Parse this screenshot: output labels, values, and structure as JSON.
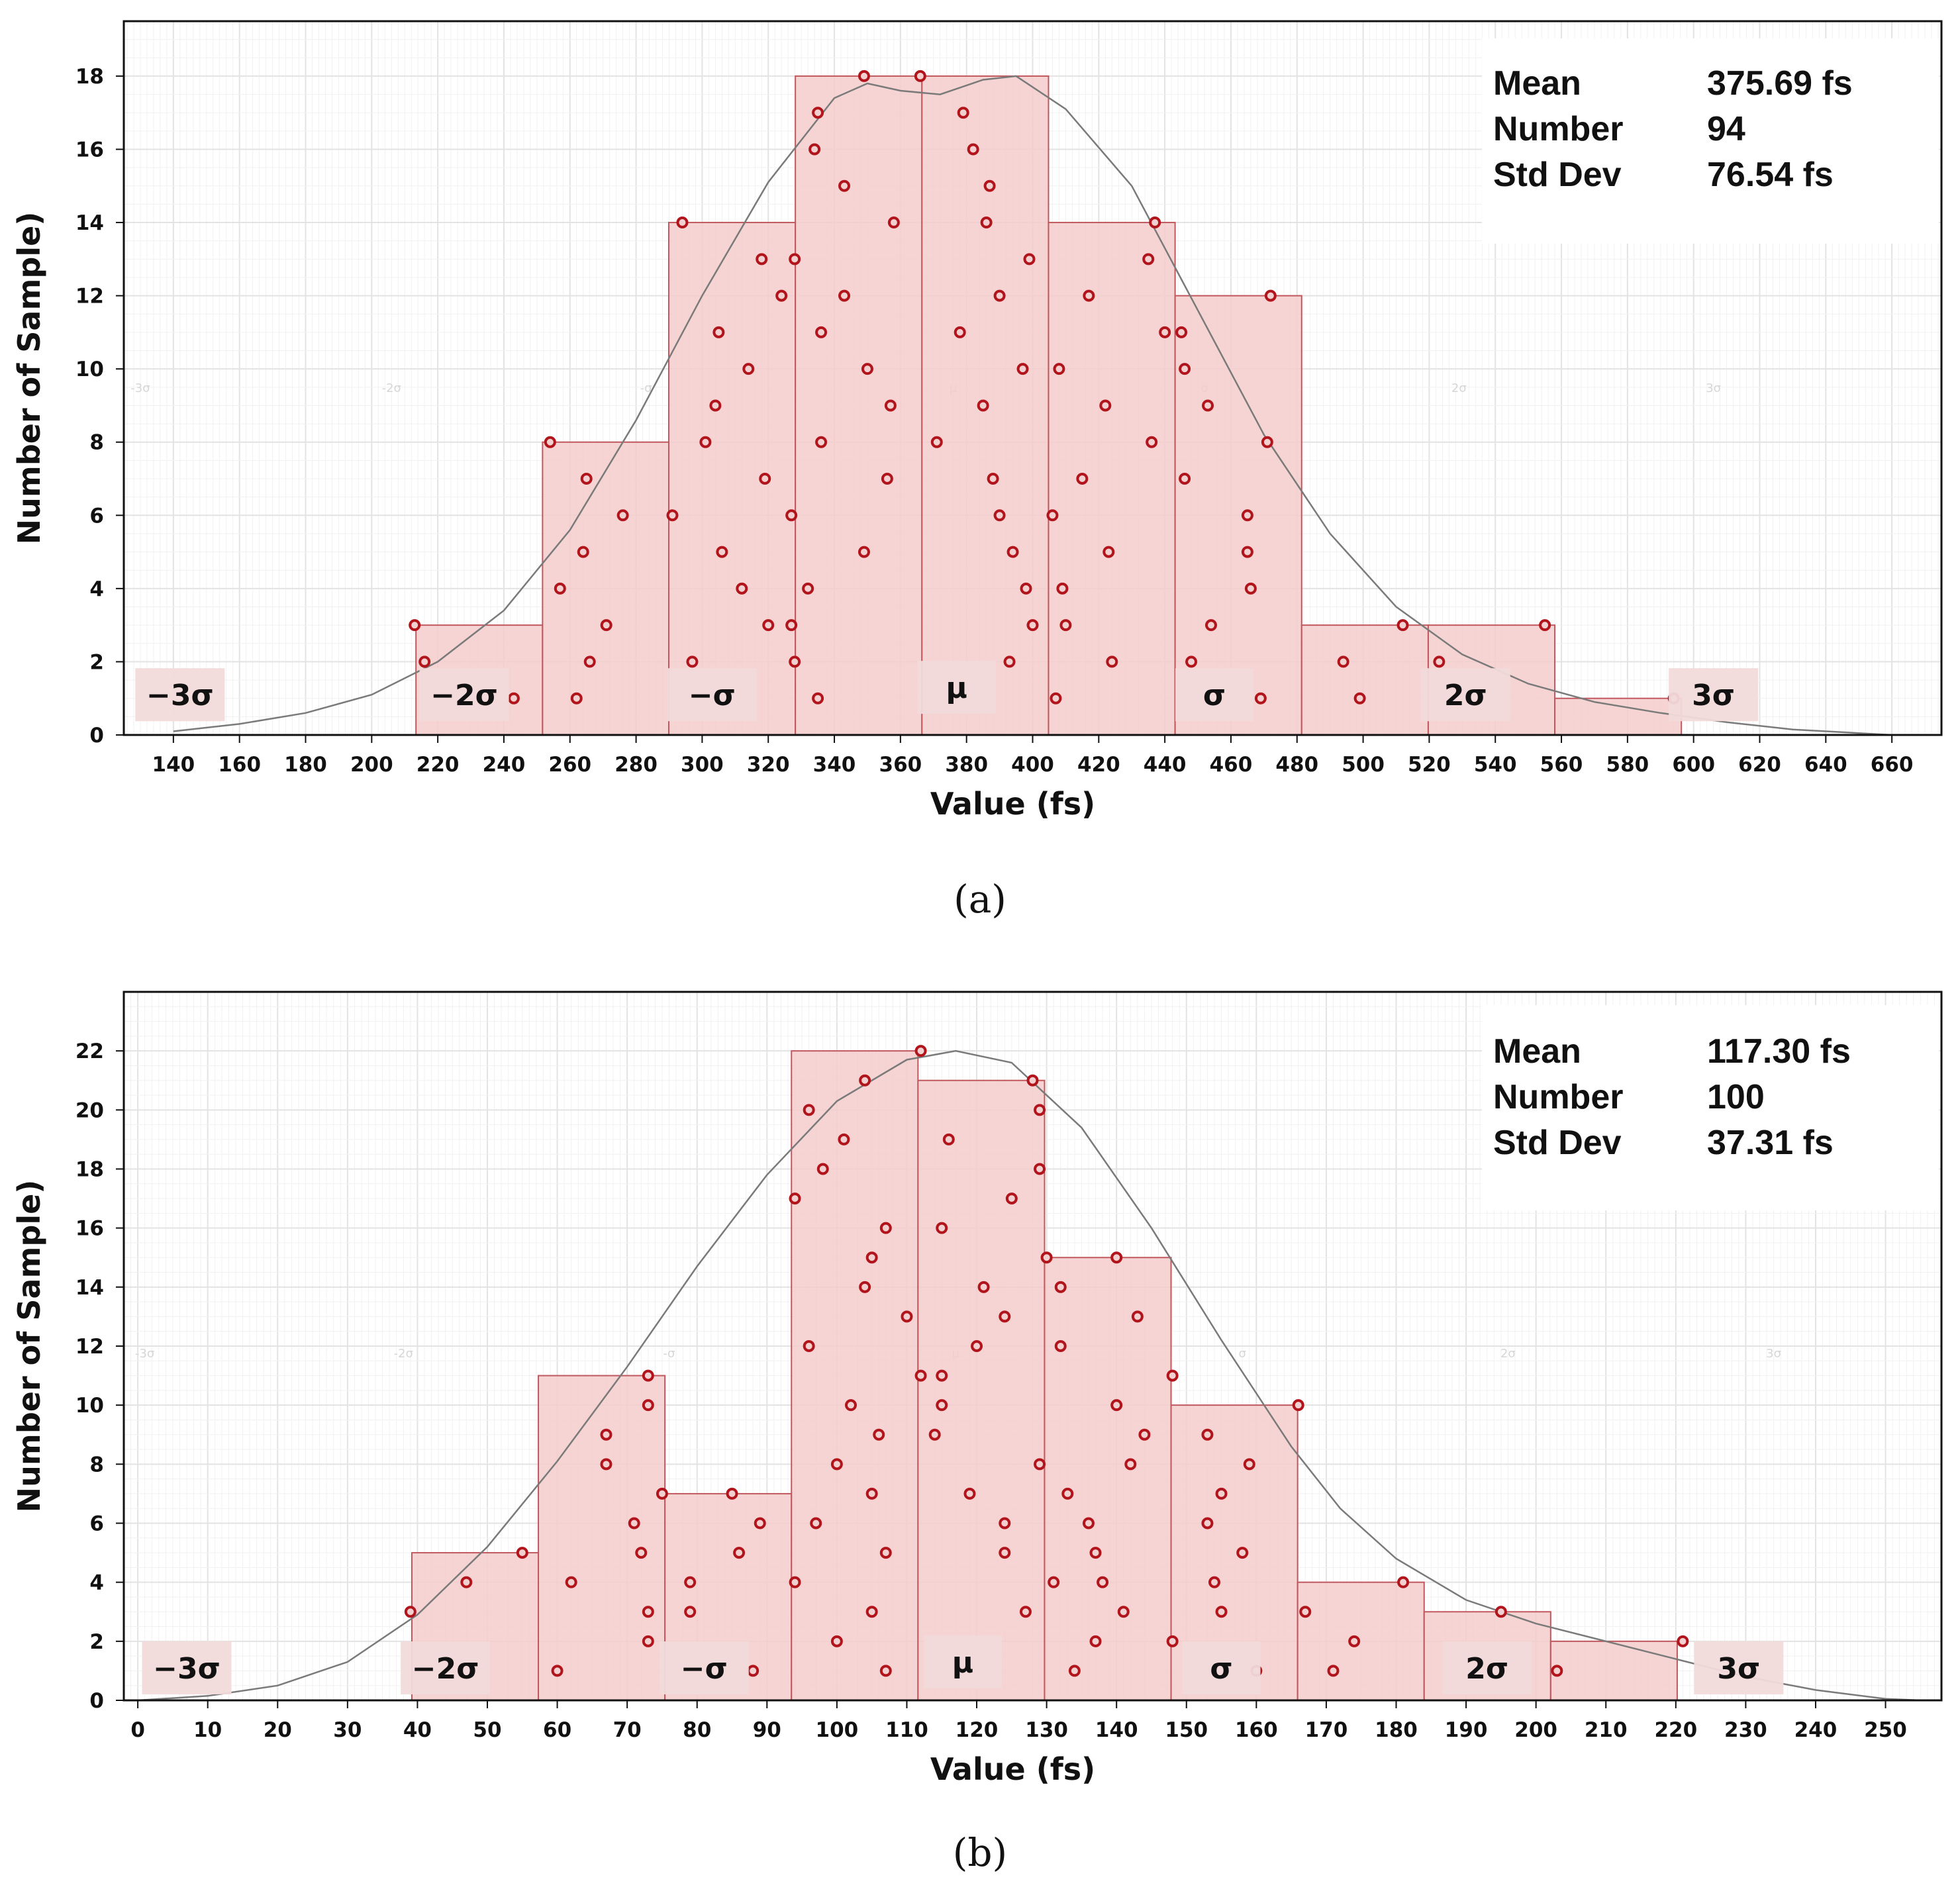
{
  "chart_data": [
    {
      "type": "histogram",
      "panel": "a",
      "caption": "(a)",
      "xlabel": "Value  (fs)",
      "ylabel": "Number of Sample)",
      "xlim": [
        125,
        675
      ],
      "ylim": [
        0,
        19.5
      ],
      "xticks": [
        140,
        160,
        180,
        200,
        220,
        240,
        260,
        280,
        300,
        320,
        340,
        360,
        380,
        400,
        420,
        440,
        460,
        480,
        500,
        520,
        540,
        560,
        580,
        600,
        620,
        640,
        660
      ],
      "yticks": [
        0,
        2,
        4,
        6,
        8,
        10,
        12,
        14,
        16,
        18
      ],
      "bins": [
        {
          "x0": 213.4,
          "x1": 251.7,
          "count": 3
        },
        {
          "x0": 251.7,
          "x1": 289.9,
          "count": 8
        },
        {
          "x0": 289.9,
          "x1": 328.2,
          "count": 14
        },
        {
          "x0": 328.2,
          "x1": 366.5,
          "count": 18
        },
        {
          "x0": 366.5,
          "x1": 404.8,
          "count": 18
        },
        {
          "x0": 404.8,
          "x1": 443.1,
          "count": 14
        },
        {
          "x0": 443.1,
          "x1": 481.4,
          "count": 12
        },
        {
          "x0": 481.4,
          "x1": 519.7,
          "count": 3
        },
        {
          "x0": 519.7,
          "x1": 558.0,
          "count": 3
        },
        {
          "x0": 558.0,
          "x1": 596.3,
          "count": 1
        }
      ],
      "curve": [
        [
          140,
          0.1
        ],
        [
          160,
          0.3
        ],
        [
          180,
          0.6
        ],
        [
          200,
          1.1
        ],
        [
          220,
          2.0
        ],
        [
          240,
          3.4
        ],
        [
          260,
          5.6
        ],
        [
          280,
          8.6
        ],
        [
          300,
          12.0
        ],
        [
          320,
          15.1
        ],
        [
          340,
          17.4
        ],
        [
          350,
          17.8
        ],
        [
          360,
          17.6
        ],
        [
          372,
          17.5
        ],
        [
          385,
          17.9
        ],
        [
          395,
          18.0
        ],
        [
          410,
          17.1
        ],
        [
          430,
          15.0
        ],
        [
          450,
          11.6
        ],
        [
          470,
          8.2
        ],
        [
          490,
          5.5
        ],
        [
          510,
          3.5
        ],
        [
          530,
          2.2
        ],
        [
          550,
          1.4
        ],
        [
          570,
          0.9
        ],
        [
          590,
          0.6
        ],
        [
          610,
          0.35
        ],
        [
          630,
          0.15
        ],
        [
          650,
          0.05
        ],
        [
          660,
          0.0
        ]
      ],
      "sigma_labels": [
        {
          "text": "−3σ",
          "x": 142,
          "y": 1.1
        },
        {
          "text": "−2σ",
          "x": 228,
          "y": 1.1
        },
        {
          "text": "−σ",
          "x": 303,
          "y": 1.1
        },
        {
          "text": "μ",
          "x": 377,
          "y": 1.3
        },
        {
          "text": "σ",
          "x": 455,
          "y": 1.1
        },
        {
          "text": "2σ",
          "x": 531,
          "y": 1.1
        },
        {
          "text": "3σ",
          "x": 606,
          "y": 1.1
        }
      ],
      "faint_labels": [
        {
          "text": "-3σ",
          "x": 130
        },
        {
          "text": "-2σ",
          "x": 206
        },
        {
          "text": "-σ",
          "x": 283
        },
        {
          "text": "μ",
          "x": 376
        },
        {
          "text": "σ",
          "x": 452
        },
        {
          "text": "2σ",
          "x": 529
        },
        {
          "text": "3σ",
          "x": 606
        }
      ],
      "stats": [
        {
          "label": "Mean",
          "value": "375.69 fs"
        },
        {
          "label": "Number",
          "value": "94"
        },
        {
          "label": "Std Dev",
          "value": "76.54   fs"
        }
      ],
      "points": [
        [
          213,
          3
        ],
        [
          216,
          2
        ],
        [
          243,
          1
        ],
        [
          254,
          8
        ],
        [
          257,
          4
        ],
        [
          262,
          1
        ],
        [
          264,
          5
        ],
        [
          265,
          7
        ],
        [
          266,
          2
        ],
        [
          271,
          3
        ],
        [
          276,
          6
        ],
        [
          291,
          6
        ],
        [
          294,
          14
        ],
        [
          297,
          2
        ],
        [
          301,
          8
        ],
        [
          304,
          9
        ],
        [
          305,
          11
        ],
        [
          306,
          5
        ],
        [
          312,
          4
        ],
        [
          314,
          10
        ],
        [
          318,
          13
        ],
        [
          319,
          7
        ],
        [
          320,
          3
        ],
        [
          324,
          12
        ],
        [
          327,
          6
        ],
        [
          327,
          3
        ],
        [
          328,
          13
        ],
        [
          328,
          2
        ],
        [
          332,
          4
        ],
        [
          334,
          16
        ],
        [
          335,
          17
        ],
        [
          335,
          1
        ],
        [
          336,
          8
        ],
        [
          336,
          11
        ],
        [
          343,
          15
        ],
        [
          343,
          12
        ],
        [
          349,
          18
        ],
        [
          349,
          5
        ],
        [
          350,
          10
        ],
        [
          356,
          7
        ],
        [
          357,
          9
        ],
        [
          358,
          14
        ],
        [
          366,
          18
        ],
        [
          371,
          8
        ],
        [
          378,
          11
        ],
        [
          379,
          17
        ],
        [
          382,
          16
        ],
        [
          385,
          9
        ],
        [
          386,
          14
        ],
        [
          387,
          15
        ],
        [
          388,
          7
        ],
        [
          390,
          6
        ],
        [
          390,
          12
        ],
        [
          393,
          2
        ],
        [
          394,
          5
        ],
        [
          397,
          10
        ],
        [
          398,
          4
        ],
        [
          399,
          13
        ],
        [
          400,
          3
        ],
        [
          406,
          6
        ],
        [
          407,
          1
        ],
        [
          408,
          10
        ],
        [
          409,
          4
        ],
        [
          410,
          3
        ],
        [
          415,
          7
        ],
        [
          417,
          12
        ],
        [
          422,
          9
        ],
        [
          423,
          5
        ],
        [
          424,
          2
        ],
        [
          435,
          13
        ],
        [
          436,
          8
        ],
        [
          437,
          14
        ],
        [
          440,
          11
        ],
        [
          445,
          11
        ],
        [
          446,
          7
        ],
        [
          446,
          10
        ],
        [
          448,
          2
        ],
        [
          453,
          9
        ],
        [
          454,
          3
        ],
        [
          465,
          6
        ],
        [
          465,
          5
        ],
        [
          466,
          4
        ],
        [
          469,
          1
        ],
        [
          471,
          8
        ],
        [
          472,
          12
        ],
        [
          494,
          2
        ],
        [
          499,
          1
        ],
        [
          512,
          3
        ],
        [
          523,
          2
        ],
        [
          555,
          3
        ],
        [
          594,
          1
        ]
      ]
    },
    {
      "type": "histogram",
      "panel": "b",
      "caption": "(b)",
      "xlabel": "Value  (fs)",
      "ylabel": "Number of Sample)",
      "xlim": [
        -2,
        258
      ],
      "ylim": [
        0,
        24
      ],
      "xticks": [
        0,
        10,
        20,
        30,
        40,
        50,
        60,
        70,
        80,
        90,
        100,
        110,
        120,
        130,
        140,
        150,
        160,
        170,
        180,
        190,
        200,
        210,
        220,
        230,
        240,
        250
      ],
      "yticks": [
        0,
        2,
        4,
        6,
        8,
        10,
        12,
        14,
        16,
        18,
        20,
        22
      ],
      "bins": [
        {
          "x0": 39.2,
          "x1": 57.3,
          "count": 5
        },
        {
          "x0": 57.3,
          "x1": 75.4,
          "count": 11
        },
        {
          "x0": 75.4,
          "x1": 93.5,
          "count": 7
        },
        {
          "x0": 93.5,
          "x1": 111.6,
          "count": 22
        },
        {
          "x0": 111.6,
          "x1": 129.7,
          "count": 21
        },
        {
          "x0": 129.7,
          "x1": 147.8,
          "count": 15
        },
        {
          "x0": 147.8,
          "x1": 165.9,
          "count": 10
        },
        {
          "x0": 165.9,
          "x1": 184.0,
          "count": 4
        },
        {
          "x0": 184.0,
          "x1": 202.1,
          "count": 3
        },
        {
          "x0": 202.1,
          "x1": 220.2,
          "count": 2
        }
      ],
      "curve": [
        [
          0,
          0.0
        ],
        [
          10,
          0.15
        ],
        [
          20,
          0.5
        ],
        [
          30,
          1.3
        ],
        [
          40,
          2.9
        ],
        [
          50,
          5.2
        ],
        [
          60,
          8.1
        ],
        [
          70,
          11.3
        ],
        [
          80,
          14.7
        ],
        [
          90,
          17.8
        ],
        [
          100,
          20.3
        ],
        [
          110,
          21.7
        ],
        [
          117,
          22.0
        ],
        [
          125,
          21.6
        ],
        [
          135,
          19.4
        ],
        [
          145,
          16.0
        ],
        [
          155,
          12.2
        ],
        [
          165,
          8.6
        ],
        [
          172,
          6.5
        ],
        [
          180,
          4.8
        ],
        [
          190,
          3.4
        ],
        [
          200,
          2.6
        ],
        [
          210,
          2.0
        ],
        [
          220,
          1.4
        ],
        [
          230,
          0.8
        ],
        [
          240,
          0.35
        ],
        [
          250,
          0.05
        ],
        [
          255,
          0.0
        ]
      ],
      "sigma_labels": [
        {
          "text": "−3σ",
          "x": 7,
          "y": 1.1
        },
        {
          "text": "−2σ",
          "x": 44,
          "y": 1.1
        },
        {
          "text": "−σ",
          "x": 81,
          "y": 1.1
        },
        {
          "text": "μ",
          "x": 118,
          "y": 1.3
        },
        {
          "text": "σ",
          "x": 155,
          "y": 1.1
        },
        {
          "text": "2σ",
          "x": 193,
          "y": 1.1
        },
        {
          "text": "3σ",
          "x": 229,
          "y": 1.1
        }
      ],
      "faint_labels": [
        {
          "text": "-3σ",
          "x": 1
        },
        {
          "text": "-2σ",
          "x": 38
        },
        {
          "text": "-σ",
          "x": 76
        },
        {
          "text": "μ",
          "x": 117
        },
        {
          "text": "σ",
          "x": 158
        },
        {
          "text": "2σ",
          "x": 196
        },
        {
          "text": "3σ",
          "x": 234
        }
      ],
      "stats": [
        {
          "label": "Mean",
          "value": "117.30 fs"
        },
        {
          "label": "Number",
          "value": "100"
        },
        {
          "label": "Std Dev",
          "value": "37.31   fs"
        }
      ],
      "points": [
        [
          39,
          3
        ],
        [
          47,
          4
        ],
        [
          55,
          5
        ],
        [
          60,
          1
        ],
        [
          62,
          4
        ],
        [
          67,
          9
        ],
        [
          67,
          8
        ],
        [
          71,
          6
        ],
        [
          72,
          5
        ],
        [
          73,
          11
        ],
        [
          73,
          10
        ],
        [
          73,
          3
        ],
        [
          73,
          2
        ],
        [
          75,
          7
        ],
        [
          79,
          4
        ],
        [
          79,
          3
        ],
        [
          85,
          7
        ],
        [
          86,
          5
        ],
        [
          88,
          1
        ],
        [
          89,
          6
        ],
        [
          94,
          17
        ],
        [
          94,
          4
        ],
        [
          96,
          20
        ],
        [
          96,
          12
        ],
        [
          97,
          6
        ],
        [
          98,
          18
        ],
        [
          100,
          8
        ],
        [
          100,
          2
        ],
        [
          101,
          19
        ],
        [
          102,
          10
        ],
        [
          104,
          21
        ],
        [
          104,
          14
        ],
        [
          105,
          15
        ],
        [
          105,
          7
        ],
        [
          105,
          3
        ],
        [
          106,
          9
        ],
        [
          107,
          16
        ],
        [
          107,
          5
        ],
        [
          107,
          1
        ],
        [
          110,
          13
        ],
        [
          112,
          22
        ],
        [
          112,
          11
        ],
        [
          114,
          9
        ],
        [
          115,
          16
        ],
        [
          115,
          11
        ],
        [
          115,
          10
        ],
        [
          116,
          19
        ],
        [
          119,
          7
        ],
        [
          120,
          12
        ],
        [
          121,
          14
        ],
        [
          124,
          13
        ],
        [
          124,
          6
        ],
        [
          124,
          5
        ],
        [
          125,
          17
        ],
        [
          127,
          3
        ],
        [
          128,
          21
        ],
        [
          129,
          8
        ],
        [
          129,
          20
        ],
        [
          129,
          18
        ],
        [
          130,
          15
        ],
        [
          131,
          4
        ],
        [
          132,
          14
        ],
        [
          132,
          12
        ],
        [
          133,
          7
        ],
        [
          134,
          1
        ],
        [
          136,
          6
        ],
        [
          137,
          5
        ],
        [
          137,
          2
        ],
        [
          138,
          4
        ],
        [
          140,
          15
        ],
        [
          140,
          10
        ],
        [
          141,
          3
        ],
        [
          142,
          8
        ],
        [
          143,
          13
        ],
        [
          144,
          9
        ],
        [
          148,
          11
        ],
        [
          148,
          2
        ],
        [
          153,
          9
        ],
        [
          153,
          6
        ],
        [
          154,
          4
        ],
        [
          155,
          7
        ],
        [
          155,
          3
        ],
        [
          158,
          5
        ],
        [
          159,
          8
        ],
        [
          160,
          1
        ],
        [
          166,
          10
        ],
        [
          167,
          3
        ],
        [
          171,
          1
        ],
        [
          174,
          2
        ],
        [
          181,
          4
        ],
        [
          195,
          3
        ],
        [
          203,
          1
        ],
        [
          221,
          2
        ]
      ]
    }
  ]
}
